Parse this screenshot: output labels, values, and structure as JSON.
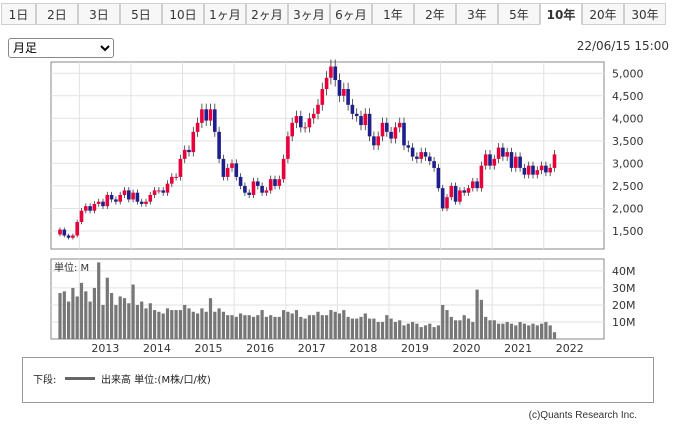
{
  "tabs": [
    "1日",
    "2日",
    "3日",
    "5日",
    "10日",
    "1ヶ月",
    "2ヶ月",
    "3ヶ月",
    "6ヶ月",
    "1年",
    "2年",
    "3年",
    "5年",
    "10年",
    "20年",
    "30年"
  ],
  "active_tab": "10年",
  "period_select": "月足",
  "timestamp": "22/06/15 15:00",
  "volume_unit_label": "単位: M",
  "legend": {
    "label": "下段:",
    "series": "出来高 単位:(M株/口/枚)"
  },
  "copyright": "(c)Quants Research Inc.",
  "colors": {
    "up": "#e8003c",
    "down": "#1e1e8c",
    "volume": "#777777"
  },
  "chart_data": {
    "type": "candlestick",
    "x_tick_labels": [
      "2013",
      "2014",
      "2015",
      "2016",
      "2017",
      "2018",
      "2019",
      "2020",
      "2021",
      "2022"
    ],
    "price_axis": {
      "ticks": [
        1500,
        2000,
        2500,
        3000,
        3500,
        4000,
        4500,
        5000
      ],
      "tick_labels": [
        "1,500",
        "2,000",
        "2,500",
        "3,000",
        "3,500",
        "4,000",
        "4,500",
        "5,000"
      ],
      "range": [
        1100,
        5250
      ]
    },
    "volume_axis": {
      "ticks": [
        10,
        20,
        30,
        40
      ],
      "tick_labels": [
        "10M",
        "20M",
        "30M",
        "40M"
      ],
      "range": [
        0,
        47
      ]
    },
    "start_month": "2012-08",
    "close": [
      1530,
      1400,
      1350,
      1400,
      1700,
      1950,
      2050,
      1950,
      2100,
      2150,
      2050,
      2300,
      2200,
      2150,
      2300,
      2400,
      2200,
      2350,
      2150,
      2100,
      2150,
      2300,
      2400,
      2400,
      2350,
      2550,
      2700,
      2700,
      3100,
      3300,
      3250,
      3700,
      3900,
      4200,
      3950,
      4200,
      3700,
      3100,
      2700,
      2900,
      3000,
      2700,
      2500,
      2350,
      2300,
      2600,
      2500,
      2350,
      2400,
      2650,
      2500,
      2650,
      3100,
      3600,
      3900,
      4050,
      3800,
      3800,
      4000,
      4100,
      4300,
      4650,
      4900,
      5150,
      4850,
      4500,
      4650,
      4300,
      4100,
      4050,
      3850,
      4100,
      3600,
      3400,
      3600,
      3900,
      3700,
      3550,
      3800,
      3900,
      3400,
      3350,
      3150,
      3100,
      3250,
      3150,
      3050,
      2900,
      2450,
      2000,
      2250,
      2500,
      2150,
      2400,
      2350,
      2450,
      2600,
      2450,
      2950,
      3200,
      2950,
      3100,
      3350,
      3150,
      3250,
      2900,
      3150,
      2900,
      2750,
      2950,
      2750,
      2850,
      2950,
      2800,
      2900,
      3200
    ],
    "volume": [
      27,
      28,
      22,
      30,
      25,
      33,
      28,
      22,
      30,
      45,
      20,
      36,
      27,
      20,
      25,
      24,
      21,
      32,
      20,
      22,
      18,
      21,
      17,
      16,
      15,
      18,
      17,
      17,
      17,
      20,
      18,
      16,
      15,
      18,
      16,
      24,
      16,
      18,
      16,
      14,
      14,
      13,
      15,
      14,
      14,
      13,
      14,
      17,
      13,
      14,
      13,
      13,
      17,
      16,
      15,
      17,
      13,
      12,
      14,
      14,
      16,
      14,
      14,
      17,
      16,
      15,
      17,
      13,
      12,
      12,
      13,
      15,
      12,
      12,
      10,
      10,
      14,
      12,
      10,
      11,
      8,
      9,
      10,
      9,
      7,
      8,
      9,
      7,
      8,
      20,
      17,
      13,
      11,
      11,
      14,
      12,
      10,
      29,
      23,
      13,
      11,
      11,
      9,
      9,
      10,
      9,
      8,
      10,
      9,
      8,
      9,
      8,
      9,
      10,
      8,
      4
    ]
  }
}
